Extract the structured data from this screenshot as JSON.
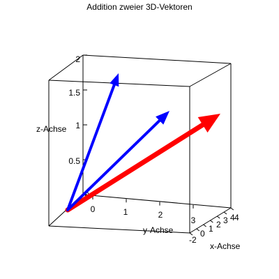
{
  "chart_data": {
    "type": "line",
    "title": "Addition zweier 3D-Vektoren",
    "xlabel": "x-Achse",
    "ylabel": "y-Achse",
    "zlabel": "z-Achse",
    "xlim": [
      -2,
      4
    ],
    "ylim": [
      0,
      3
    ],
    "zlim": [
      0,
      2
    ],
    "x_ticks": [
      "-2",
      "0",
      "1",
      "2",
      "3",
      "4"
    ],
    "y_ticks": [
      "0",
      "1",
      "2",
      "3"
    ],
    "z_ticks": [
      "0",
      "0.5",
      "1",
      "1.5",
      "2"
    ],
    "projection": "3d-box",
    "vectors": [
      {
        "from": [
          0,
          0,
          0
        ],
        "to": [
          1,
          1,
          2
        ],
        "color": "#0000ff"
      },
      {
        "from": [
          0,
          0,
          0
        ],
        "to": [
          2,
          2,
          1.5
        ],
        "color": "#0000ff"
      },
      {
        "from": [
          0,
          0,
          0
        ],
        "to": [
          3,
          3,
          1.5
        ],
        "color": "#ff0000"
      }
    ]
  }
}
